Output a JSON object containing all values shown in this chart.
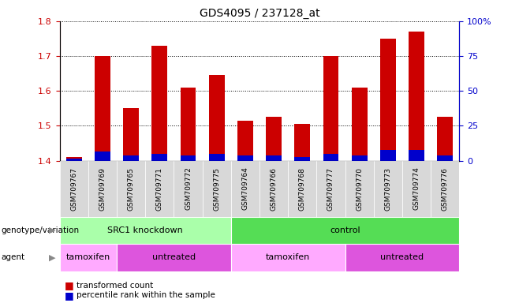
{
  "title": "GDS4095 / 237128_at",
  "samples": [
    "GSM709767",
    "GSM709769",
    "GSM709765",
    "GSM709771",
    "GSM709772",
    "GSM709775",
    "GSM709764",
    "GSM709766",
    "GSM709768",
    "GSM709777",
    "GSM709770",
    "GSM709773",
    "GSM709774",
    "GSM709776"
  ],
  "red_values": [
    1.41,
    1.7,
    1.55,
    1.73,
    1.61,
    1.645,
    1.515,
    1.525,
    1.505,
    1.7,
    1.61,
    1.75,
    1.77,
    1.525
  ],
  "blue_values": [
    1.405,
    1.425,
    1.415,
    1.42,
    1.415,
    1.42,
    1.415,
    1.415,
    1.41,
    1.42,
    1.415,
    1.43,
    1.43,
    1.415
  ],
  "ylim_left": [
    1.4,
    1.8
  ],
  "ylim_right": [
    0,
    100
  ],
  "yticks_left": [
    1.4,
    1.5,
    1.6,
    1.7,
    1.8
  ],
  "yticks_right": [
    0,
    25,
    50,
    75,
    100
  ],
  "ytick_right_labels": [
    "0",
    "25",
    "50",
    "75",
    "100%"
  ],
  "bar_bottom": 1.4,
  "red_color": "#cc0000",
  "blue_color": "#0000cc",
  "bar_width": 0.55,
  "genotype_groups": [
    {
      "label": "SRC1 knockdown",
      "start": 0,
      "end": 6,
      "color": "#aaffaa"
    },
    {
      "label": "control",
      "start": 6,
      "end": 14,
      "color": "#55dd55"
    }
  ],
  "agent_groups": [
    {
      "label": "tamoxifen",
      "start": 0,
      "end": 2,
      "color": "#ffaaff"
    },
    {
      "label": "untreated",
      "start": 2,
      "end": 6,
      "color": "#dd55dd"
    },
    {
      "label": "tamoxifen",
      "start": 6,
      "end": 10,
      "color": "#ffaaff"
    },
    {
      "label": "untreated",
      "start": 10,
      "end": 14,
      "color": "#dd55dd"
    }
  ],
  "legend_red": "transformed count",
  "legend_blue": "percentile rank within the sample",
  "genotype_label": "genotype/variation",
  "agent_label": "agent",
  "background_color": "#ffffff",
  "plot_bg_color": "#ffffff",
  "tick_label_color_left": "#cc0000",
  "tick_label_color_right": "#0000cc",
  "xticklabel_bg": "#d8d8d8"
}
